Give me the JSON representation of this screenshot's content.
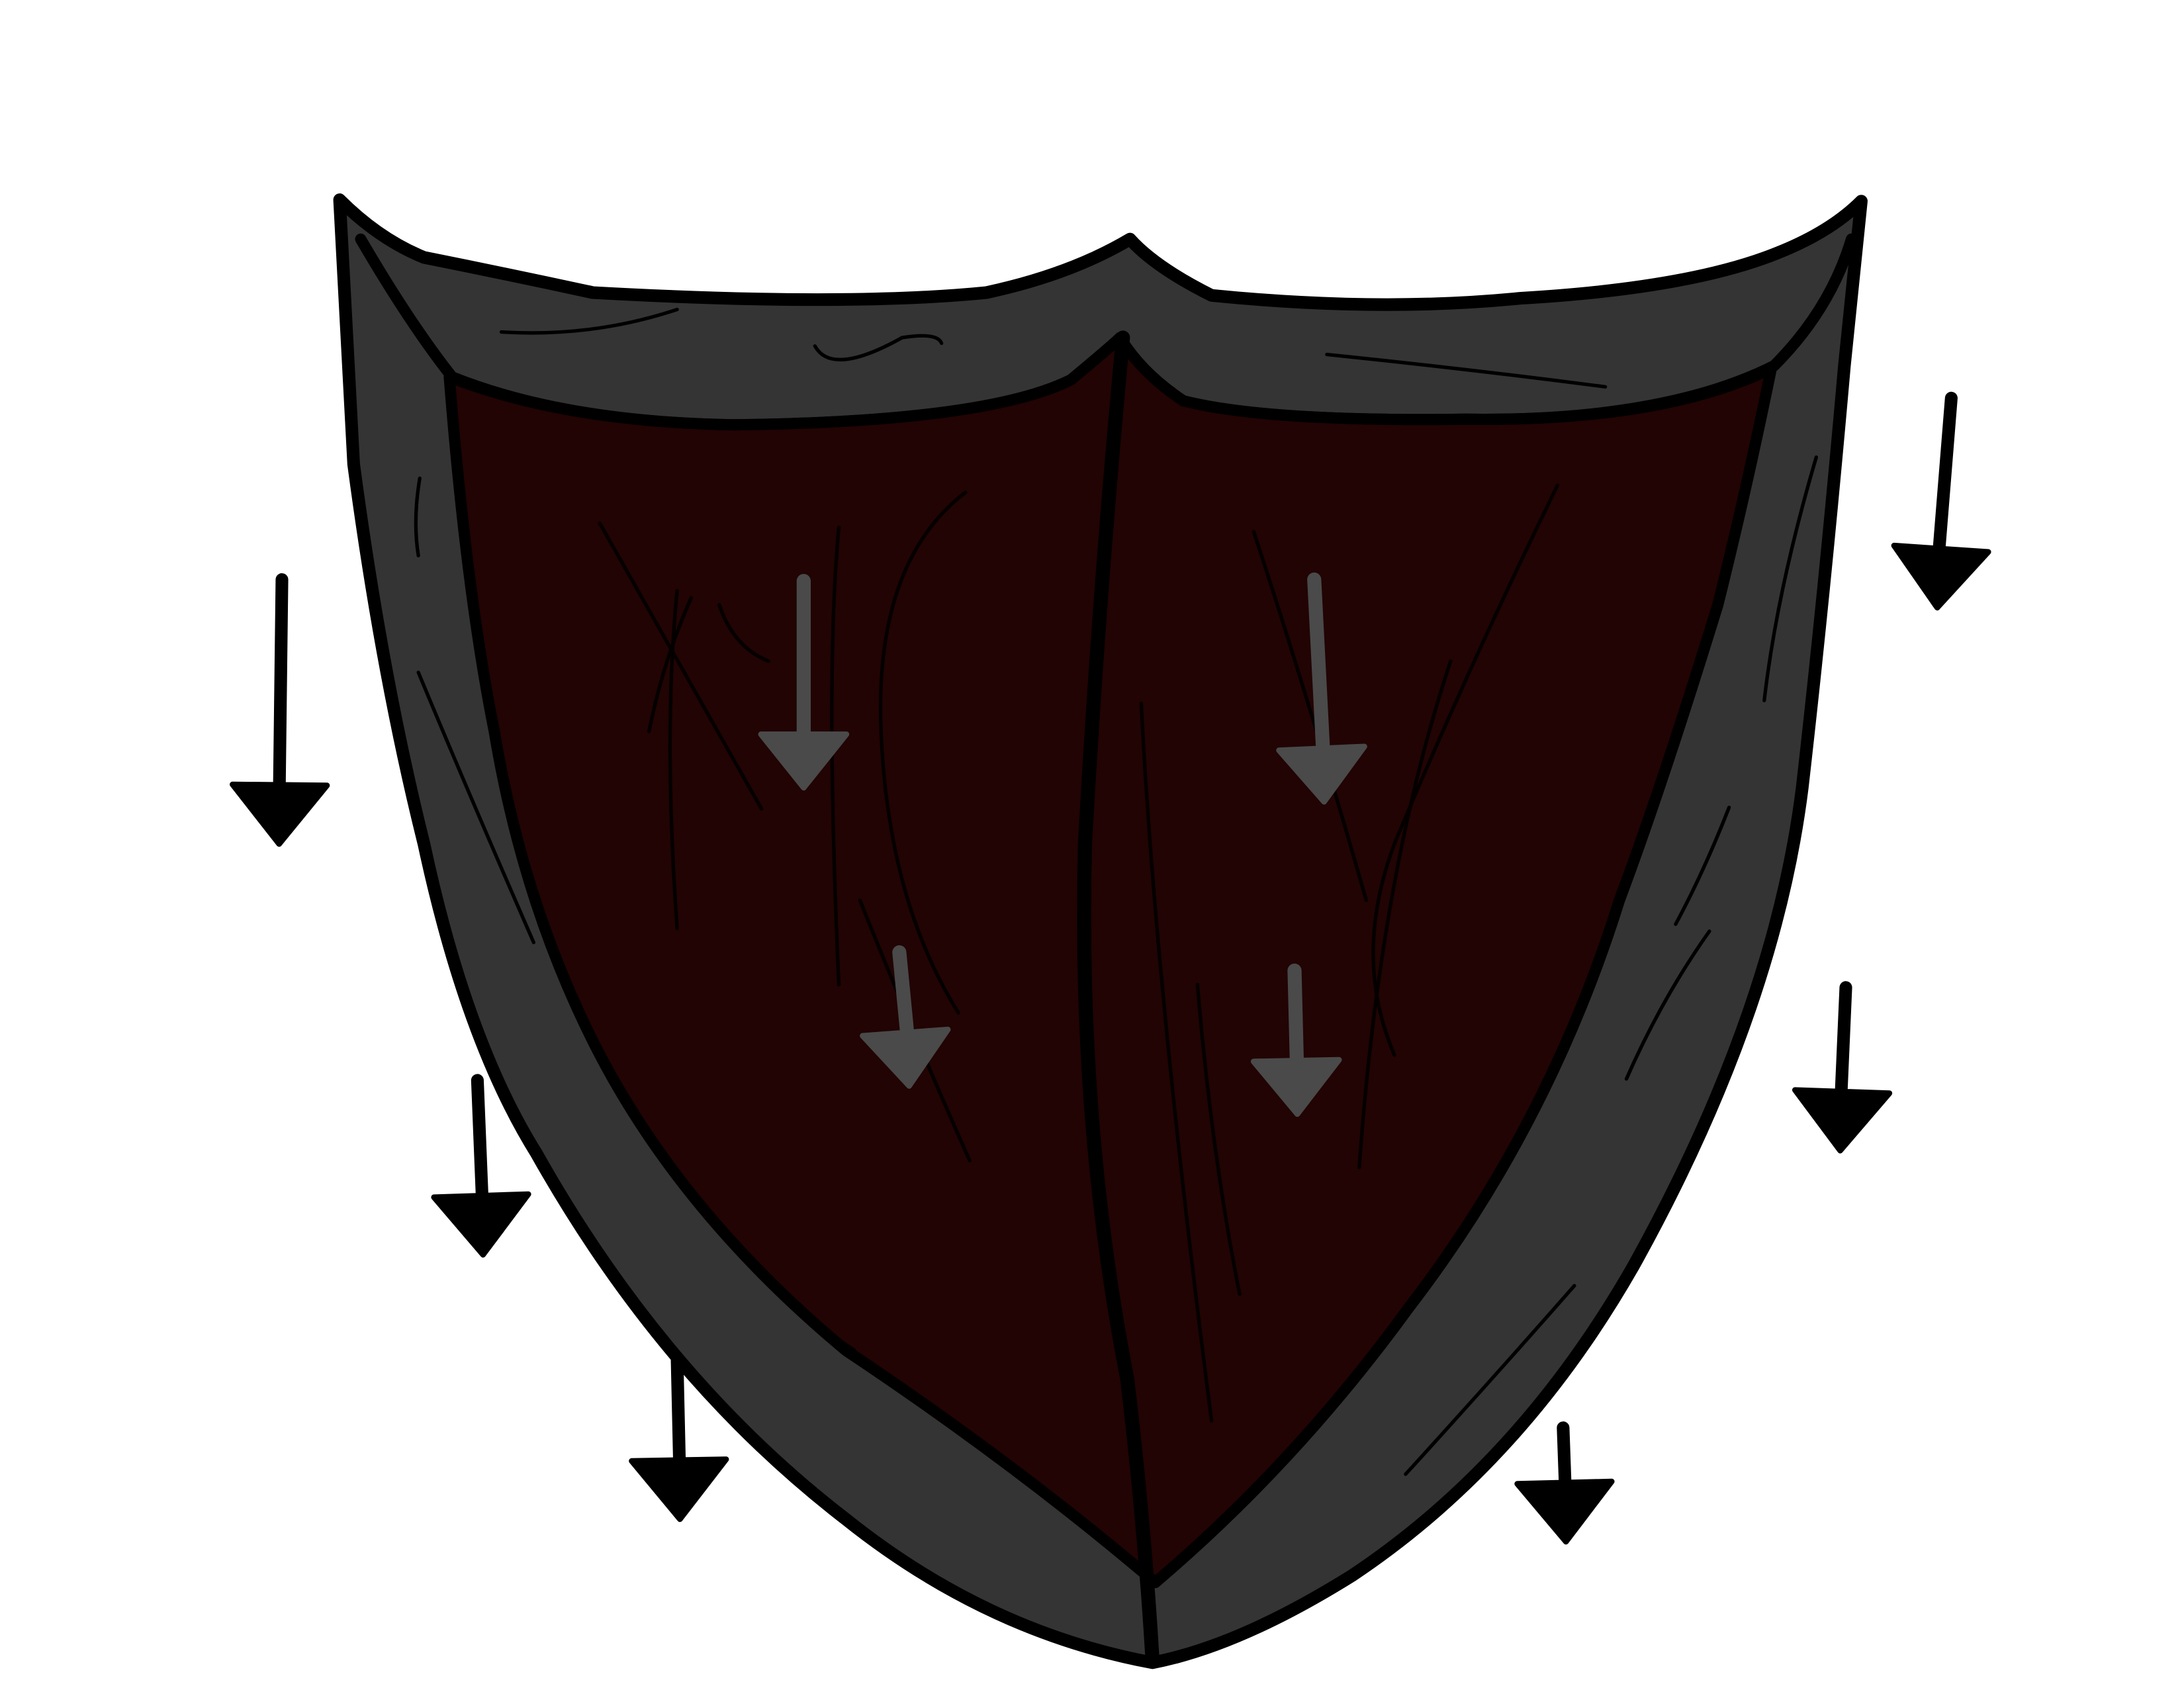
{
  "image": {
    "subject": "shield-illustration",
    "colors": {
      "background": "#ffffff",
      "rim": "#343434",
      "face": "#210403",
      "outline": "#000000",
      "inner_arrow": "#4a4a4a",
      "scratch": "#0a0000"
    },
    "icons": {
      "outer_arrows": "down-arrow-icon",
      "inner_arrows": "down-arrow-icon"
    }
  }
}
